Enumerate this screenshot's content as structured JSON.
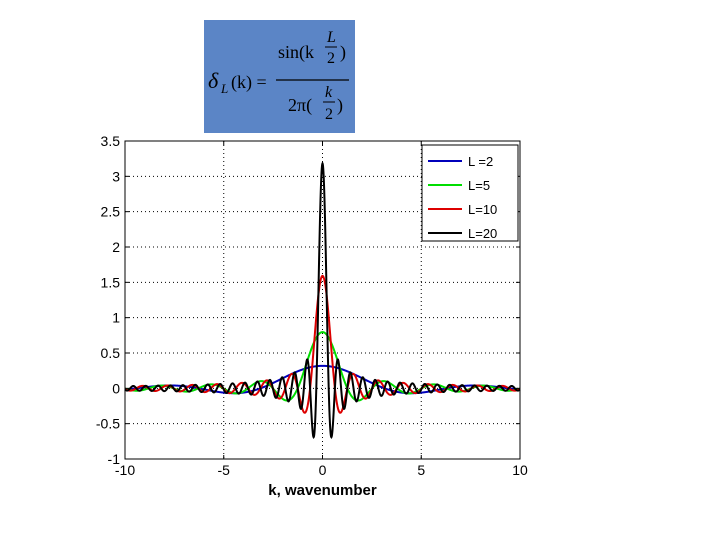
{
  "formula": {
    "lhs": "δ",
    "lhs_sub": "L",
    "lhs_arg": "(k) =",
    "num_sin": "sin(k",
    "num_frac_top": "L",
    "num_frac_bot": "2",
    "num_close": ")",
    "den_pre": "2π(",
    "den_frac_top": "k",
    "den_frac_bot": "2",
    "den_close": ")"
  },
  "chart_data": {
    "type": "line",
    "title": "",
    "xlabel": "k, wavenumber",
    "ylabel": "",
    "xlim": [
      -10,
      10
    ],
    "ylim": [
      -1,
      3.5
    ],
    "xticks": [
      -10,
      -5,
      0,
      5,
      10
    ],
    "xtick_labels": [
      "-10",
      "-5",
      "0",
      "5",
      "10"
    ],
    "yticks": [
      -1,
      -0.5,
      0,
      0.5,
      1,
      1.5,
      2,
      2.5,
      3,
      3.5
    ],
    "ytick_labels": [
      "-1",
      "-0.5",
      "0",
      "0.5",
      "1",
      "1.5",
      "2",
      "2.5",
      "3",
      "3.5"
    ],
    "grid": true,
    "legend_position": "top-right",
    "formula": "δ_L(k) = sin(kL/2) / (2π(k/2))",
    "series": [
      {
        "name": "L =2",
        "L": 2,
        "color": "#0000bb",
        "peak": 0.32
      },
      {
        "name": "L=5",
        "L": 5,
        "color": "#00dd00",
        "peak": 0.8
      },
      {
        "name": "L=10",
        "L": 10,
        "color": "#dd0000",
        "peak": 1.59
      },
      {
        "name": "L=20",
        "L": 20,
        "color": "#000000",
        "peak": 3.18
      }
    ]
  }
}
